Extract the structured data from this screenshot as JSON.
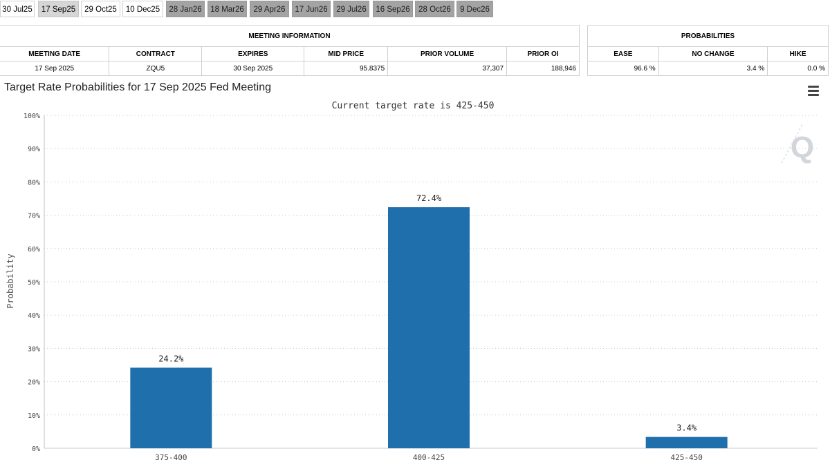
{
  "meeting_tabs": [
    {
      "label": "30 Jul25",
      "state": "past"
    },
    {
      "label": "17 Sep25",
      "state": "selected"
    },
    {
      "label": "29 Oct25",
      "state": "normal"
    },
    {
      "label": "10 Dec25",
      "state": "normal"
    },
    {
      "label": "28 Jan26",
      "state": "future"
    },
    {
      "label": "18 Mar26",
      "state": "future"
    },
    {
      "label": "29 Apr26",
      "state": "future"
    },
    {
      "label": "17 Jun26",
      "state": "future"
    },
    {
      "label": "29 Jul26",
      "state": "future"
    },
    {
      "label": "16 Sep26",
      "state": "future"
    },
    {
      "label": "28 Oct26",
      "state": "future"
    },
    {
      "label": "9 Dec26",
      "state": "future"
    }
  ],
  "meeting_info": {
    "section_title": "MEETING INFORMATION",
    "headers": [
      "MEETING DATE",
      "CONTRACT",
      "EXPIRES",
      "MID PRICE",
      "PRIOR VOLUME",
      "PRIOR OI"
    ],
    "values": [
      "17 Sep 2025",
      "ZQU5",
      "30 Sep 2025",
      "95.8375",
      "37,307",
      "188,946"
    ]
  },
  "probabilities": {
    "section_title": "PROBABILITIES",
    "headers": [
      "EASE",
      "NO CHANGE",
      "HIKE"
    ],
    "values": [
      "96.6 %",
      "3.4 %",
      "0.0 %"
    ]
  },
  "chart_title": "Target Rate Probabilities for 17 Sep 2025 Fed Meeting",
  "watermark": "Q",
  "colors": {
    "bar": "#1f6fad",
    "grid": "#c8c8c8",
    "axis": "#c0c0c0"
  },
  "chart_data": {
    "type": "bar",
    "title": "Target Rate Probabilities for 17 Sep 2025 Fed Meeting",
    "subtitle": "Current target rate is 425-450",
    "ylabel": "Probability",
    "xlabel": "",
    "categories": [
      "375-400",
      "400-425",
      "425-450"
    ],
    "values": [
      24.2,
      72.4,
      3.4
    ],
    "data_labels": [
      "24.2%",
      "72.4%",
      "3.4%"
    ],
    "ylim": [
      0,
      100
    ],
    "yticks": [
      0,
      10,
      20,
      30,
      40,
      50,
      60,
      70,
      80,
      90,
      100
    ],
    "ytick_labels": [
      "0%",
      "10%",
      "20%",
      "30%",
      "40%",
      "50%",
      "60%",
      "70%",
      "80%",
      "90%",
      "100%"
    ],
    "grid": true,
    "legend": "none"
  }
}
